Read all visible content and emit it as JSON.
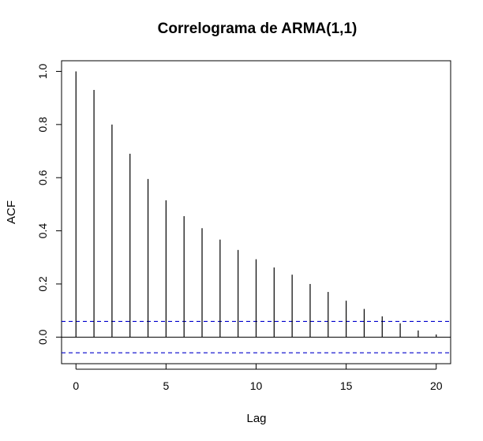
{
  "chart_data": {
    "type": "bar",
    "title": "Correlograma de ARMA(1,1)",
    "xlabel": "Lag",
    "ylabel": "ACF",
    "x": [
      0,
      1,
      2,
      3,
      4,
      5,
      6,
      7,
      8,
      9,
      10,
      11,
      12,
      13,
      14,
      15,
      16,
      17,
      18,
      19,
      20
    ],
    "values": [
      1.0,
      0.93,
      0.8,
      0.69,
      0.595,
      0.515,
      0.455,
      0.41,
      0.367,
      0.328,
      0.293,
      0.262,
      0.235,
      0.2,
      0.17,
      0.137,
      0.106,
      0.078,
      0.052,
      0.025,
      0.01
    ],
    "xlim": [
      -0.8,
      20.8
    ],
    "ylim": [
      -0.1,
      1.04
    ],
    "xticks": [
      "0",
      "5",
      "10",
      "15",
      "20"
    ],
    "yticks": [
      "0.0",
      "0.2",
      "0.4",
      "0.6",
      "0.8",
      "1.0"
    ],
    "confidence_bound": 0.059,
    "confidence_color": "#0000CC",
    "grid": false
  }
}
